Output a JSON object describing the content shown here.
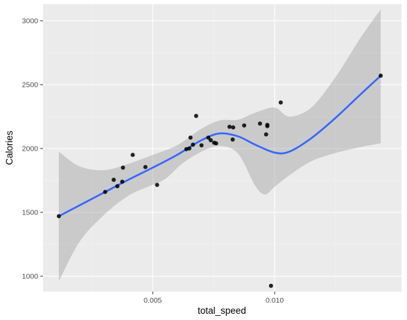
{
  "chart_data": {
    "type": "scatter",
    "title": "",
    "xlabel": "total_speed",
    "ylabel": "Calories",
    "xlim": [
      0.0005,
      0.0152
    ],
    "ylim": [
      880,
      3130
    ],
    "x_ticks": [
      {
        "value": 0.005,
        "label": "0.005"
      },
      {
        "value": 0.01,
        "label": "0.010"
      }
    ],
    "x_minor_ticks": [
      0.0025,
      0.0075,
      0.0125
    ],
    "y_ticks": [
      {
        "value": 1000,
        "label": "1000"
      },
      {
        "value": 1500,
        "label": "1500"
      },
      {
        "value": 2000,
        "label": "2000"
      },
      {
        "value": 2500,
        "label": "2500"
      },
      {
        "value": 3000,
        "label": "3000"
      }
    ],
    "y_minor_ticks": [
      1250,
      1750,
      2250,
      2750
    ],
    "grid": true,
    "legend": "none",
    "colors": {
      "panel_background": "#ebebeb",
      "major_grid": "#ffffff",
      "minor_grid": "#f5f5f5",
      "points": "#000000",
      "smooth_line": "#3366ff",
      "confidence_band": "#999999"
    },
    "points": [
      {
        "x": 0.00115,
        "y": 1470
      },
      {
        "x": 0.00305,
        "y": 1660
      },
      {
        "x": 0.0034,
        "y": 1755
      },
      {
        "x": 0.00355,
        "y": 1705
      },
      {
        "x": 0.00375,
        "y": 1740
      },
      {
        "x": 0.00378,
        "y": 1850
      },
      {
        "x": 0.00418,
        "y": 1950
      },
      {
        "x": 0.0047,
        "y": 1855
      },
      {
        "x": 0.00518,
        "y": 1715
      },
      {
        "x": 0.00638,
        "y": 1995
      },
      {
        "x": 0.0065,
        "y": 2000
      },
      {
        "x": 0.00655,
        "y": 2085
      },
      {
        "x": 0.00665,
        "y": 2030
      },
      {
        "x": 0.00678,
        "y": 2255
      },
      {
        "x": 0.007,
        "y": 2025
      },
      {
        "x": 0.00728,
        "y": 2085
      },
      {
        "x": 0.00738,
        "y": 2065
      },
      {
        "x": 0.00752,
        "y": 2045
      },
      {
        "x": 0.0076,
        "y": 2040
      },
      {
        "x": 0.00815,
        "y": 2170
      },
      {
        "x": 0.00828,
        "y": 2070
      },
      {
        "x": 0.0083,
        "y": 2165
      },
      {
        "x": 0.00875,
        "y": 2180
      },
      {
        "x": 0.0094,
        "y": 2195
      },
      {
        "x": 0.00965,
        "y": 2110
      },
      {
        "x": 0.0097,
        "y": 2175
      },
      {
        "x": 0.0097,
        "y": 2185
      },
      {
        "x": 0.00985,
        "y": 925
      },
      {
        "x": 0.01025,
        "y": 2360
      },
      {
        "x": 0.01435,
        "y": 2570
      }
    ],
    "smooth": {
      "method": "loess",
      "fit": [
        {
          "x": 0.00115,
          "y": 1470
        },
        {
          "x": 0.002,
          "y": 1555
        },
        {
          "x": 0.003,
          "y": 1655
        },
        {
          "x": 0.004,
          "y": 1755
        },
        {
          "x": 0.005,
          "y": 1850
        },
        {
          "x": 0.006,
          "y": 1950
        },
        {
          "x": 0.007,
          "y": 2065
        },
        {
          "x": 0.00775,
          "y": 2118
        },
        {
          "x": 0.0085,
          "y": 2095
        },
        {
          "x": 0.0092,
          "y": 2030
        },
        {
          "x": 0.01,
          "y": 1968
        },
        {
          "x": 0.0106,
          "y": 1975
        },
        {
          "x": 0.0115,
          "y": 2080
        },
        {
          "x": 0.0125,
          "y": 2240
        },
        {
          "x": 0.0135,
          "y": 2420
        },
        {
          "x": 0.01435,
          "y": 2570
        }
      ],
      "lower": [
        {
          "x": 0.00115,
          "y": 960
        },
        {
          "x": 0.002,
          "y": 1270
        },
        {
          "x": 0.003,
          "y": 1480
        },
        {
          "x": 0.004,
          "y": 1630
        },
        {
          "x": 0.0048,
          "y": 1700
        },
        {
          "x": 0.0055,
          "y": 1760
        },
        {
          "x": 0.0062,
          "y": 1880
        },
        {
          "x": 0.007,
          "y": 1975
        },
        {
          "x": 0.00775,
          "y": 2020
        },
        {
          "x": 0.0085,
          "y": 1960
        },
        {
          "x": 0.0092,
          "y": 1710
        },
        {
          "x": 0.0096,
          "y": 1640
        },
        {
          "x": 0.01,
          "y": 1700
        },
        {
          "x": 0.0106,
          "y": 1790
        },
        {
          "x": 0.0115,
          "y": 1900
        },
        {
          "x": 0.0125,
          "y": 1965
        },
        {
          "x": 0.0135,
          "y": 2010
        },
        {
          "x": 0.01435,
          "y": 2040
        }
      ],
      "upper": [
        {
          "x": 0.00115,
          "y": 1975
        },
        {
          "x": 0.002,
          "y": 1860
        },
        {
          "x": 0.003,
          "y": 1830
        },
        {
          "x": 0.004,
          "y": 1880
        },
        {
          "x": 0.005,
          "y": 1950
        },
        {
          "x": 0.006,
          "y": 2025
        },
        {
          "x": 0.007,
          "y": 2155
        },
        {
          "x": 0.00775,
          "y": 2220
        },
        {
          "x": 0.0085,
          "y": 2225
        },
        {
          "x": 0.0092,
          "y": 2280
        },
        {
          "x": 0.01,
          "y": 2320
        },
        {
          "x": 0.0106,
          "y": 2250
        },
        {
          "x": 0.0115,
          "y": 2320
        },
        {
          "x": 0.0125,
          "y": 2560
        },
        {
          "x": 0.0135,
          "y": 2860
        },
        {
          "x": 0.01435,
          "y": 3090
        }
      ]
    }
  }
}
